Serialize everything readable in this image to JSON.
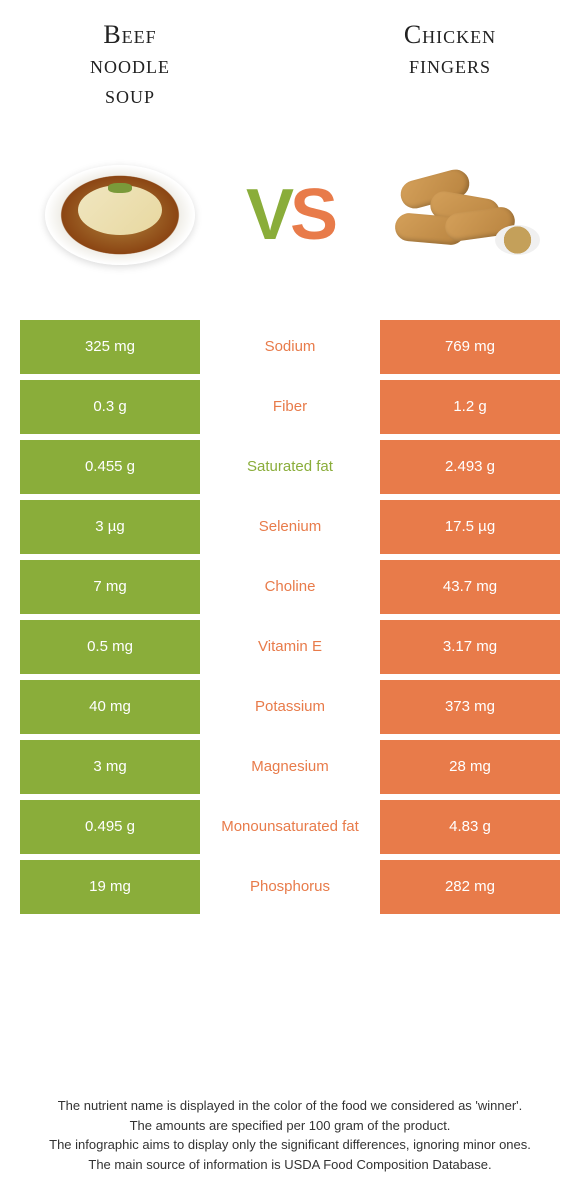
{
  "titles": {
    "left": "Beef\nnoodle\nsoup",
    "right": "Chicken\nfingers"
  },
  "vs": {
    "v": "V",
    "s": "S"
  },
  "colors": {
    "left": "#8aad3a",
    "right": "#e87b4a",
    "text_white": "#ffffff"
  },
  "rows": [
    {
      "left": "325 mg",
      "label": "Sodium",
      "right": "769 mg",
      "winner": "right"
    },
    {
      "left": "0.3 g",
      "label": "Fiber",
      "right": "1.2 g",
      "winner": "right"
    },
    {
      "left": "0.455 g",
      "label": "Saturated fat",
      "right": "2.493 g",
      "winner": "left"
    },
    {
      "left": "3 µg",
      "label": "Selenium",
      "right": "17.5 µg",
      "winner": "right"
    },
    {
      "left": "7 mg",
      "label": "Choline",
      "right": "43.7 mg",
      "winner": "right"
    },
    {
      "left": "0.5 mg",
      "label": "Vitamin E",
      "right": "3.17 mg",
      "winner": "right"
    },
    {
      "left": "40 mg",
      "label": "Potassium",
      "right": "373 mg",
      "winner": "right"
    },
    {
      "left": "3 mg",
      "label": "Magnesium",
      "right": "28 mg",
      "winner": "right"
    },
    {
      "left": "0.495 g",
      "label": "Monounsaturated fat",
      "right": "4.83 g",
      "winner": "right"
    },
    {
      "left": "19 mg",
      "label": "Phosphorus",
      "right": "282 mg",
      "winner": "right"
    }
  ],
  "footer": {
    "line1": "The nutrient name is displayed in the color of the food we considered as 'winner'.",
    "line2": "The amounts are specified per 100 gram of the product.",
    "line3": "The infographic aims to display only the significant differences, ignoring minor ones.",
    "line4": "The main source of information is USDA Food Composition Database."
  }
}
